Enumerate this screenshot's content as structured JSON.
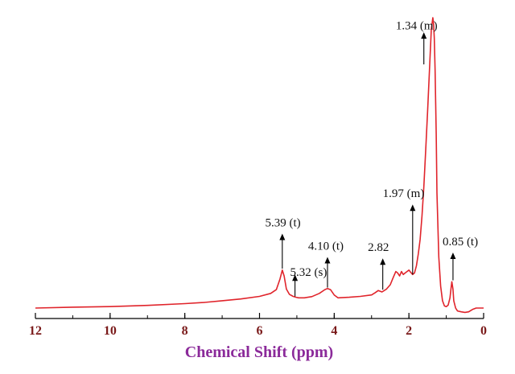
{
  "chart_data": {
    "type": "line",
    "title": "",
    "xlabel": "Chemical Shift (ppm)",
    "ylabel": "",
    "x_reversed": true,
    "xlim": [
      12,
      0
    ],
    "ylim": [
      0,
      1.0
    ],
    "x_ticks": [
      {
        "value": 12,
        "label": "12"
      },
      {
        "value": 10,
        "label": "10"
      },
      {
        "value": 8,
        "label": "8"
      },
      {
        "value": 6,
        "label": "6"
      },
      {
        "value": 4,
        "label": "4"
      },
      {
        "value": 2,
        "label": "2"
      },
      {
        "value": 0,
        "label": "0"
      }
    ],
    "grid": false,
    "line_color": "#e0242b",
    "axis_color": "#000000",
    "series": [
      {
        "x": [
          12.0,
          11.0,
          10.0,
          9.0,
          8.0,
          7.5,
          7.0,
          6.5,
          6.0,
          5.7,
          5.55,
          5.45,
          5.39,
          5.34,
          5.28,
          5.2,
          5.1,
          5.02,
          4.95,
          4.8,
          4.6,
          4.4,
          4.25,
          4.18,
          4.1,
          4.0,
          3.9,
          3.6,
          3.3,
          3.0,
          2.9,
          2.82,
          2.72,
          2.6,
          2.5,
          2.42,
          2.35,
          2.3,
          2.25,
          2.2,
          2.15,
          2.1,
          2.05,
          2.0,
          1.97,
          1.9,
          1.85,
          1.8,
          1.75,
          1.7,
          1.65,
          1.6,
          1.55,
          1.5,
          1.45,
          1.4,
          1.36,
          1.34,
          1.32,
          1.3,
          1.27,
          1.25,
          1.2,
          1.15,
          1.1,
          1.05,
          1.0,
          0.95,
          0.9,
          0.87,
          0.85,
          0.82,
          0.8,
          0.75,
          0.7,
          0.6,
          0.5,
          0.4,
          0.3,
          0.2,
          0.0
        ],
        "y": [
          0.005,
          0.008,
          0.01,
          0.014,
          0.02,
          0.024,
          0.03,
          0.036,
          0.045,
          0.055,
          0.068,
          0.105,
          0.135,
          0.115,
          0.07,
          0.052,
          0.045,
          0.042,
          0.04,
          0.04,
          0.044,
          0.055,
          0.068,
          0.072,
          0.068,
          0.05,
          0.04,
          0.042,
          0.045,
          0.05,
          0.058,
          0.065,
          0.06,
          0.07,
          0.085,
          0.11,
          0.13,
          0.125,
          0.115,
          0.13,
          0.12,
          0.125,
          0.13,
          0.135,
          0.13,
          0.12,
          0.125,
          0.15,
          0.19,
          0.24,
          0.32,
          0.42,
          0.55,
          0.68,
          0.82,
          0.96,
          1.0,
          0.98,
          0.93,
          0.82,
          0.6,
          0.4,
          0.18,
          0.08,
          0.03,
          0.012,
          0.01,
          0.015,
          0.04,
          0.075,
          0.095,
          0.07,
          0.03,
          0.005,
          -0.005,
          -0.008,
          -0.01,
          -0.008,
          0.0,
          0.005,
          0.005
        ]
      }
    ],
    "annotations": [
      {
        "text": "1.34 (m)",
        "x": 1.6,
        "arrow_from_y": 0.84,
        "arrow_to_y": 0.95,
        "text_y": 0.96,
        "text_x": 2.35
      },
      {
        "text": "1.97 (m)",
        "x": 1.9,
        "arrow_from_y": 0.12,
        "arrow_to_y": 0.36,
        "text_y": 0.385,
        "text_x": 2.7
      },
      {
        "text": "5.39 (t)",
        "x": 5.39,
        "arrow_from_y": 0.14,
        "arrow_to_y": 0.26,
        "text_y": 0.285,
        "text_x": 5.85
      },
      {
        "text": "5.32 (s)",
        "x": 5.05,
        "arrow_from_y": 0.045,
        "arrow_to_y": 0.12,
        "text_y": 0.115,
        "text_x": 5.18
      },
      {
        "text": "4.10 (t)",
        "x": 4.18,
        "arrow_from_y": 0.075,
        "arrow_to_y": 0.18,
        "text_y": 0.205,
        "text_x": 4.7
      },
      {
        "text": "2.82",
        "x": 2.7,
        "arrow_from_y": 0.068,
        "arrow_to_y": 0.175,
        "text_y": 0.2,
        "text_x": 3.1
      },
      {
        "text": "0.85 (t)",
        "x": 0.82,
        "arrow_from_y": 0.1,
        "arrow_to_y": 0.195,
        "text_y": 0.22,
        "text_x": 1.1
      }
    ]
  }
}
